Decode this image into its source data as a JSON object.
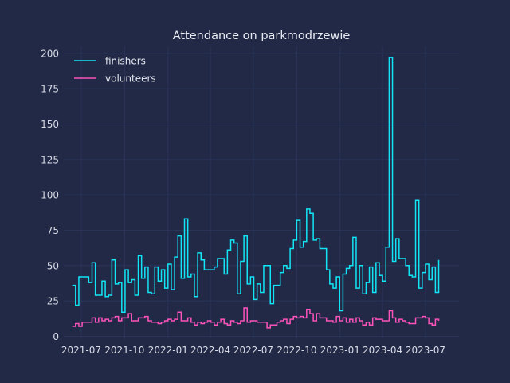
{
  "chart_data": {
    "type": "line",
    "title": "Attendance on parkmodrzewie",
    "xlabel": "",
    "ylabel": "",
    "ylim": [
      -2,
      205
    ],
    "xlim": [
      "2021-05-25",
      "2023-09-10"
    ],
    "grid": true,
    "legend_placement": "top-left",
    "x_tick_labels": [
      "2021-07",
      "2021-10",
      "2022-01",
      "2022-04",
      "2022-07",
      "2022-10",
      "2023-01",
      "2023-04",
      "2023-07"
    ],
    "y_tick_labels": [
      0,
      25,
      50,
      75,
      100,
      125,
      150,
      175,
      200
    ],
    "step": "post",
    "x_start": "2021-06-12",
    "x_interval_days": 7,
    "series": [
      {
        "name": "finishers",
        "color": "#12e5f5",
        "values": [
          36,
          22,
          42,
          42,
          42,
          38,
          52,
          29,
          29,
          39,
          28,
          29,
          54,
          37,
          38,
          17,
          47,
          38,
          40,
          29,
          57,
          41,
          49,
          31,
          30,
          49,
          39,
          47,
          34,
          51,
          33,
          56,
          71,
          41,
          83,
          42,
          44,
          28,
          59,
          54,
          47,
          47,
          47,
          49,
          55,
          55,
          44,
          61,
          68,
          66,
          30,
          53,
          71,
          37,
          42,
          26,
          37,
          31,
          50,
          50,
          23,
          36,
          36,
          45,
          50,
          48,
          62,
          68,
          82,
          63,
          67,
          90,
          87,
          68,
          69,
          62,
          62,
          47,
          37,
          34,
          42,
          18,
          44,
          48,
          50,
          70,
          34,
          50,
          30,
          38,
          49,
          31,
          52,
          43,
          39,
          63,
          197,
          53,
          69,
          55,
          55,
          50,
          43,
          42,
          96,
          34,
          45,
          51,
          40,
          49,
          31,
          54
        ],
        "stroke_width": 1.5
      },
      {
        "name": "volunteers",
        "color": "#fe53bb",
        "values": [
          7,
          9,
          7,
          10,
          10,
          10,
          13,
          10,
          13,
          11,
          12,
          11,
          13,
          14,
          11,
          13,
          13,
          16,
          11,
          11,
          13,
          13,
          14,
          11,
          10,
          10,
          9,
          10,
          11,
          12,
          11,
          12,
          17,
          11,
          11,
          13,
          10,
          8,
          10,
          9,
          10,
          11,
          10,
          8,
          10,
          12,
          9,
          8,
          11,
          10,
          9,
          11,
          20,
          10,
          11,
          11,
          10,
          10,
          10,
          6,
          8,
          8,
          10,
          11,
          12,
          9,
          12,
          14,
          13,
          14,
          13,
          19,
          16,
          11,
          16,
          13,
          13,
          11,
          11,
          10,
          14,
          11,
          13,
          10,
          12,
          10,
          13,
          11,
          8,
          10,
          8,
          13,
          12,
          12,
          11,
          11,
          18,
          13,
          10,
          12,
          11,
          10,
          9,
          9,
          13,
          13,
          14,
          13,
          9,
          8,
          12,
          11
        ],
        "stroke_width": 1.5
      }
    ]
  }
}
